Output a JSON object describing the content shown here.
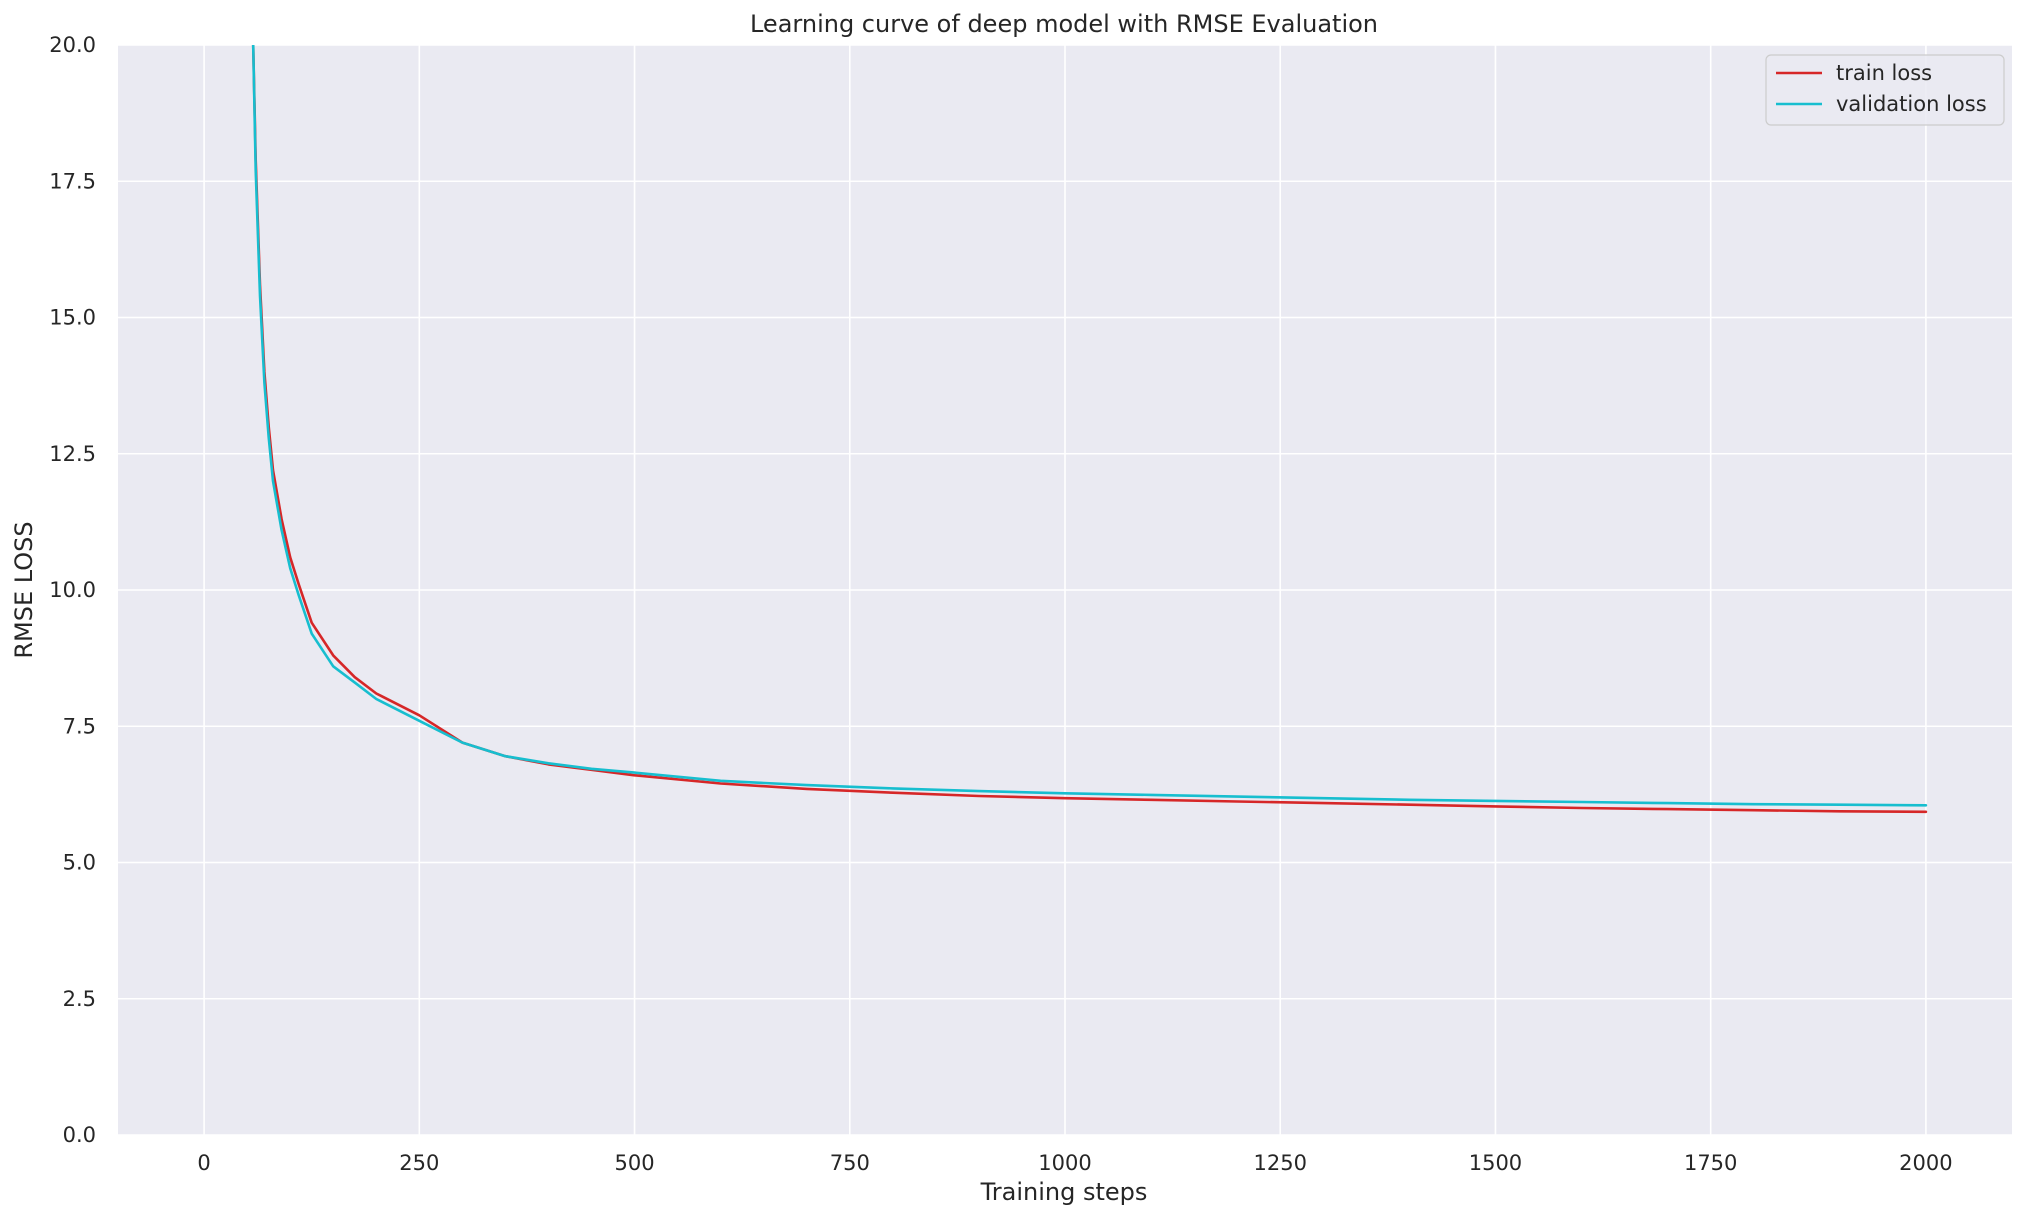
{
  "chart_data": {
    "type": "line",
    "title": "Learning curve of deep model with RMSE Evaluation",
    "xlabel": "Training steps",
    "ylabel": "RMSE LOSS",
    "xlim": [
      -100,
      2100
    ],
    "ylim": [
      0,
      20
    ],
    "x_ticks": [
      0,
      250,
      500,
      750,
      1000,
      1250,
      1500,
      1750,
      2000
    ],
    "x_tick_labels": [
      "0",
      "250",
      "500",
      "750",
      "1000",
      "1250",
      "1500",
      "1750",
      "2000"
    ],
    "y_ticks": [
      0,
      2.5,
      5,
      7.5,
      10,
      12.5,
      15,
      17.5,
      20
    ],
    "y_tick_labels": [
      "0.0",
      "2.5",
      "5.0",
      "7.5",
      "10.0",
      "12.5",
      "15.0",
      "17.5",
      "20.0"
    ],
    "grid": true,
    "legend_position": "top-right",
    "background_color": "#eaeaf2",
    "grid_color": "#ffffff",
    "series": [
      {
        "name": "train loss",
        "color": "#d62728",
        "x": [
          57,
          60,
          65,
          70,
          75,
          80,
          90,
          100,
          110,
          125,
          150,
          175,
          200,
          250,
          300,
          350,
          400,
          450,
          500,
          600,
          700,
          800,
          900,
          1000,
          1100,
          1200,
          1300,
          1400,
          1500,
          1600,
          1700,
          1800,
          1900,
          2000
        ],
        "values": [
          20.0,
          17.9,
          15.6,
          14.0,
          13.0,
          12.2,
          11.3,
          10.6,
          10.1,
          9.4,
          8.8,
          8.4,
          8.1,
          7.7,
          7.2,
          6.95,
          6.8,
          6.7,
          6.6,
          6.45,
          6.35,
          6.28,
          6.22,
          6.18,
          6.15,
          6.12,
          6.09,
          6.06,
          6.03,
          6.0,
          5.98,
          5.96,
          5.94,
          5.93
        ]
      },
      {
        "name": "validation loss",
        "color": "#17becf",
        "x": [
          57,
          60,
          65,
          70,
          75,
          80,
          90,
          100,
          110,
          125,
          150,
          175,
          200,
          250,
          300,
          350,
          400,
          450,
          500,
          600,
          700,
          800,
          900,
          1000,
          1100,
          1200,
          1300,
          1400,
          1500,
          1600,
          1700,
          1800,
          1900,
          2000
        ],
        "values": [
          20.0,
          17.7,
          15.4,
          13.8,
          12.8,
          12.0,
          11.1,
          10.4,
          9.9,
          9.2,
          8.6,
          8.3,
          8.0,
          7.6,
          7.2,
          6.95,
          6.82,
          6.72,
          6.65,
          6.5,
          6.42,
          6.36,
          6.31,
          6.27,
          6.24,
          6.21,
          6.18,
          6.15,
          6.13,
          6.11,
          6.09,
          6.07,
          6.06,
          6.05
        ]
      }
    ]
  }
}
